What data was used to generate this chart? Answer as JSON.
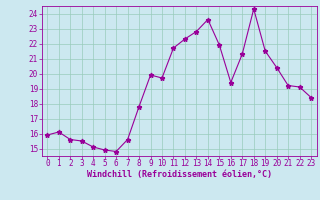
{
  "x": [
    0,
    1,
    2,
    3,
    4,
    5,
    6,
    7,
    8,
    9,
    10,
    11,
    12,
    13,
    14,
    15,
    16,
    17,
    18,
    19,
    20,
    21,
    22,
    23
  ],
  "y": [
    15.9,
    16.1,
    15.6,
    15.5,
    15.1,
    14.9,
    14.8,
    15.6,
    17.8,
    19.9,
    19.7,
    21.7,
    22.3,
    22.8,
    23.6,
    21.9,
    19.4,
    21.3,
    24.3,
    21.5,
    20.4,
    19.2,
    19.1,
    18.4
  ],
  "line_color": "#990099",
  "marker": "*",
  "marker_size": 3.5,
  "bg_color": "#cce8f0",
  "grid_color": "#99ccbb",
  "xlabel": "Windchill (Refroidissement éolien,°C)",
  "xlabel_color": "#990099",
  "ylim": [
    14.5,
    24.5
  ],
  "yticks": [
    15,
    16,
    17,
    18,
    19,
    20,
    21,
    22,
    23,
    24
  ],
  "xticks": [
    0,
    1,
    2,
    3,
    4,
    5,
    6,
    7,
    8,
    9,
    10,
    11,
    12,
    13,
    14,
    15,
    16,
    17,
    18,
    19,
    20,
    21,
    22,
    23
  ],
  "tick_color": "#990099",
  "spine_color": "#990099",
  "tick_fontsize": 5.5,
  "xlabel_fontsize": 6.0
}
